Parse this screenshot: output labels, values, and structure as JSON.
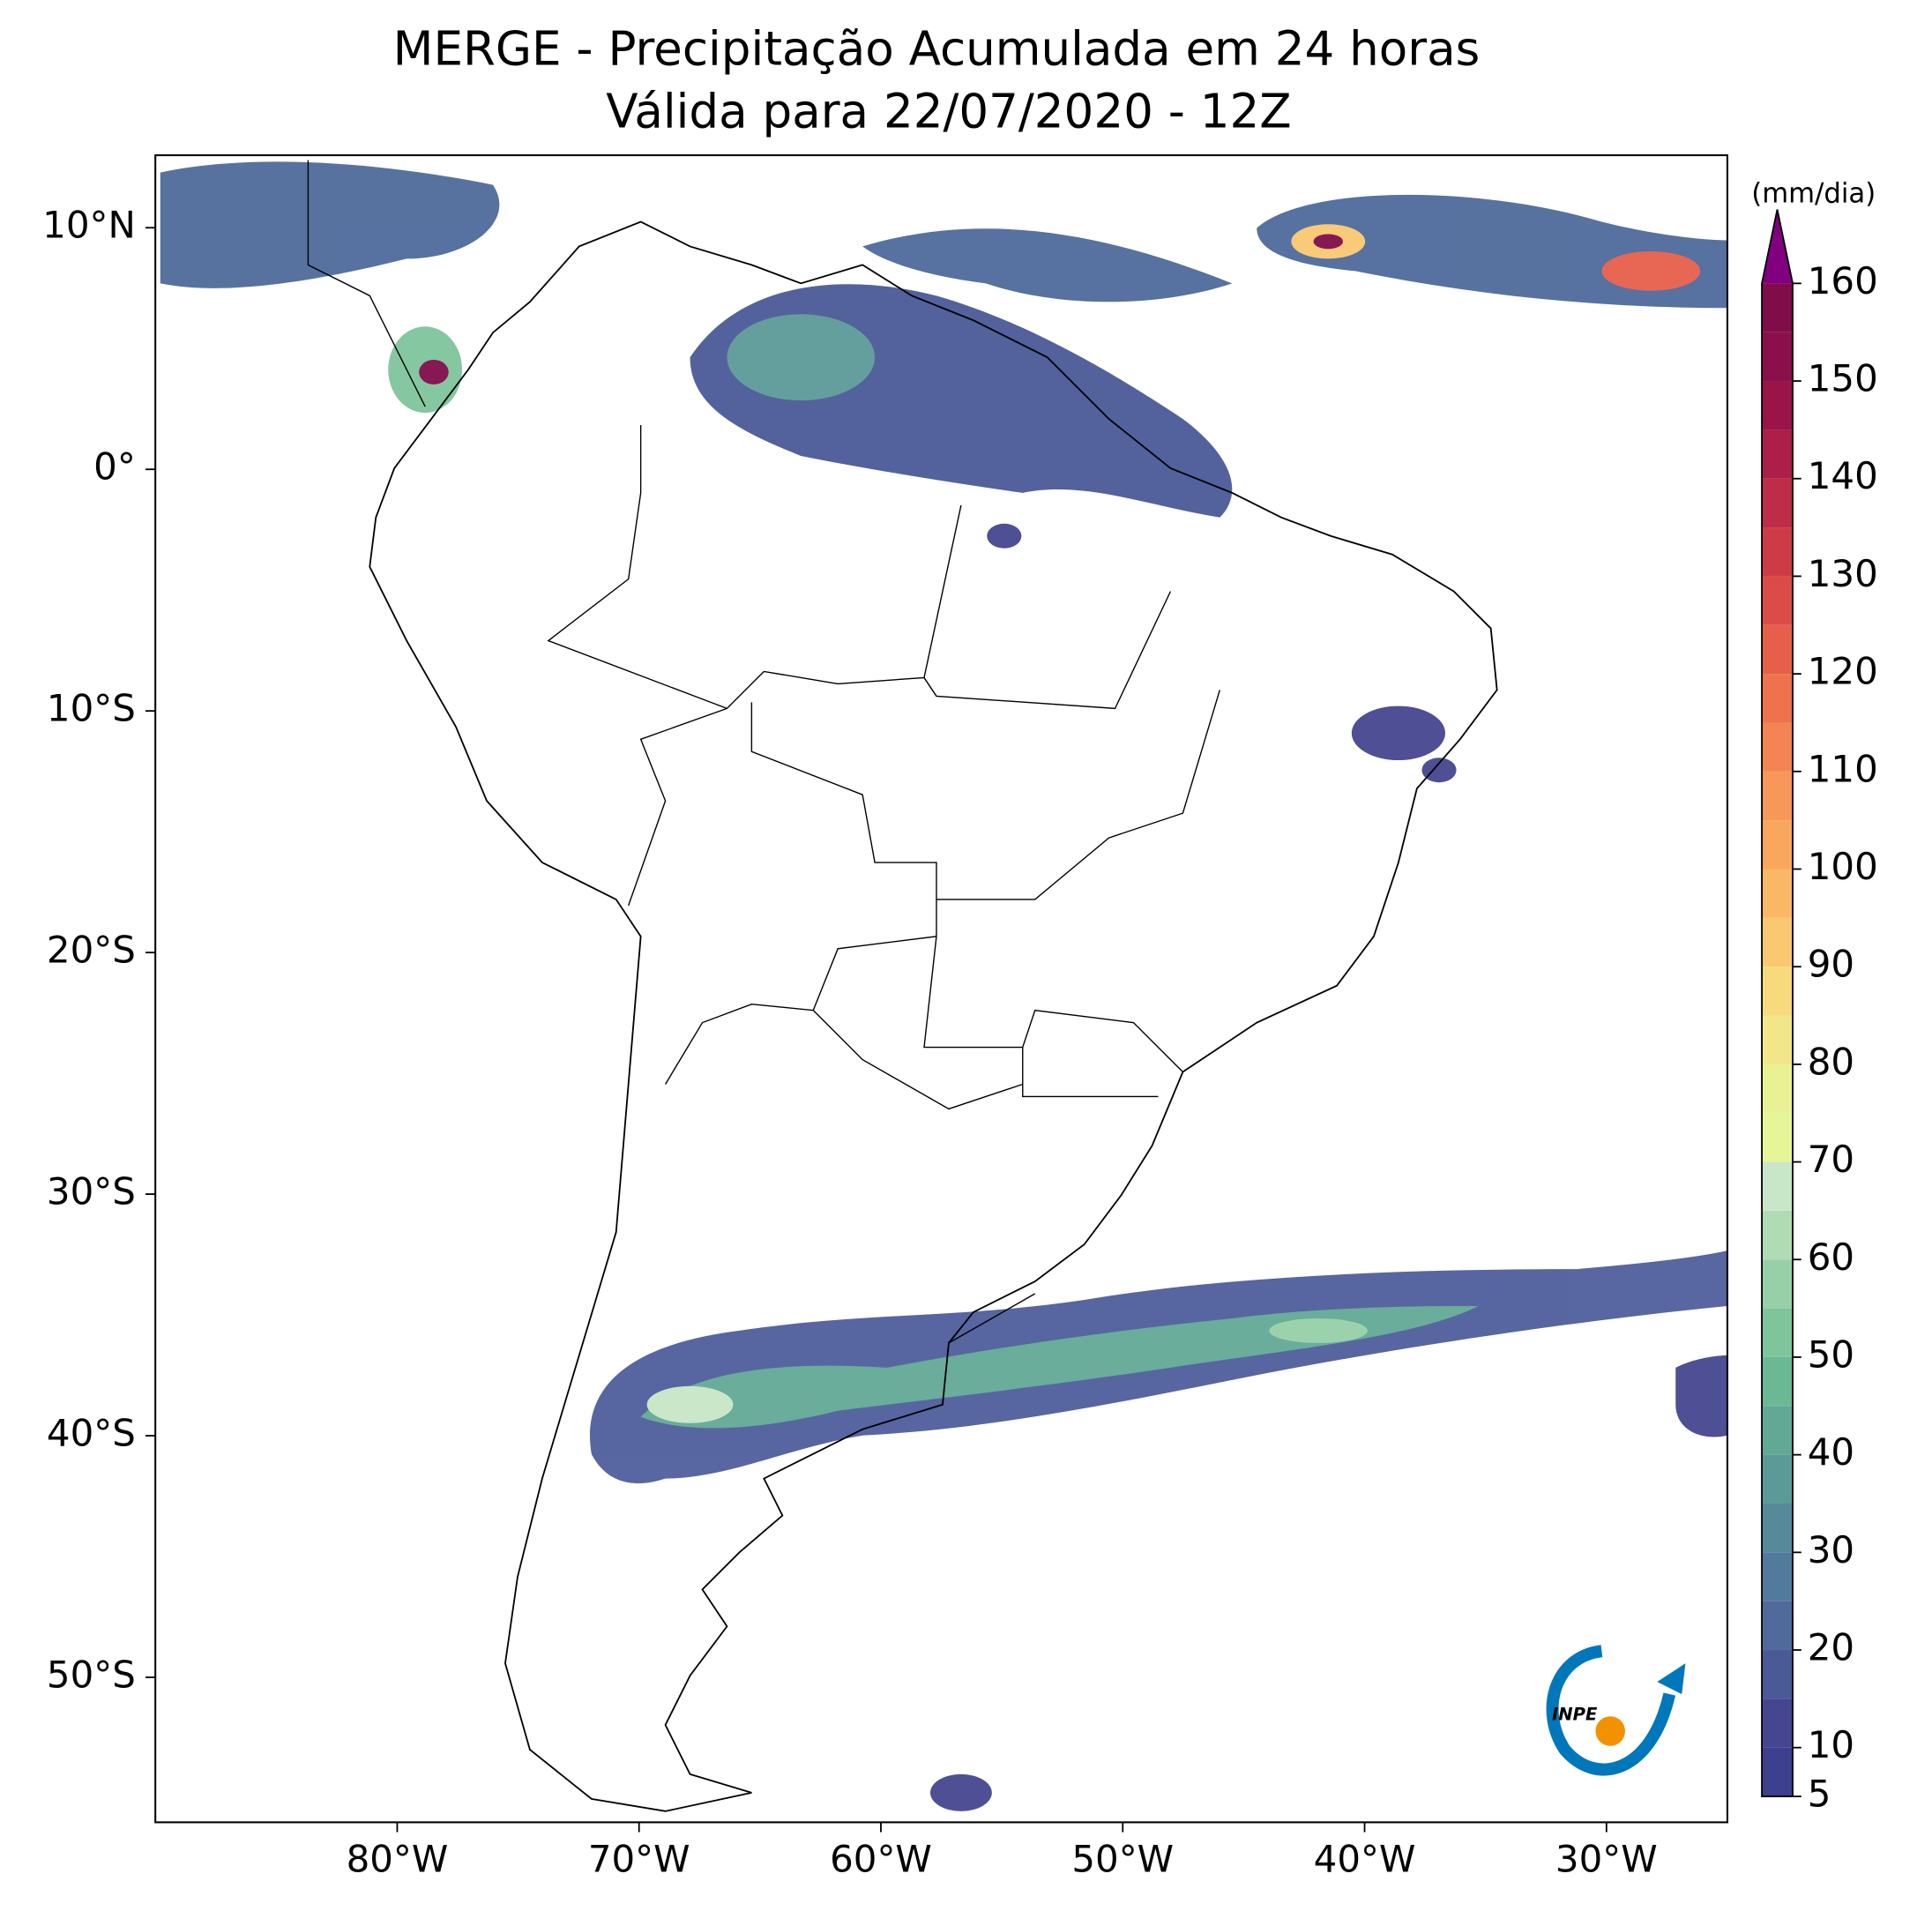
{
  "map": {
    "title": "MERGE - Precipitação Acumulada em 24 horas",
    "subtitle": "Válida para 22/07/2020 - 12Z",
    "xlim": [
      -90,
      -25
    ],
    "ylim": [
      -56,
      13
    ],
    "xticks": [
      {
        "value": -80,
        "label": "80°W"
      },
      {
        "value": -70,
        "label": "70°W"
      },
      {
        "value": -60,
        "label": "60°W"
      },
      {
        "value": -50,
        "label": "50°W"
      },
      {
        "value": -40,
        "label": "40°W"
      },
      {
        "value": -30,
        "label": "30°W"
      }
    ],
    "yticks": [
      {
        "value": 10,
        "label": "10°N"
      },
      {
        "value": 0,
        "label": "0°"
      },
      {
        "value": -10,
        "label": "10°S"
      },
      {
        "value": -20,
        "label": "20°S"
      },
      {
        "value": -30,
        "label": "30°S"
      },
      {
        "value": -40,
        "label": "40°S"
      },
      {
        "value": -50,
        "label": "50°S"
      }
    ],
    "colorbar": {
      "unit": "(mm/dia)",
      "lim": [
        5,
        160
      ],
      "ticks": [
        5,
        10,
        20,
        30,
        40,
        50,
        60,
        70,
        80,
        90,
        100,
        110,
        120,
        130,
        140,
        150,
        160
      ],
      "bounds": [
        5,
        10,
        15,
        20,
        25,
        30,
        35,
        40,
        45,
        50,
        55,
        60,
        65,
        70,
        75,
        80,
        85,
        90,
        95,
        100,
        105,
        110,
        115,
        120,
        125,
        130,
        135,
        140,
        145,
        150,
        155,
        160
      ],
      "colors": [
        "#3d3f8f",
        "#45468f",
        "#4a5a97",
        "#4f6a9b",
        "#527a9c",
        "#568a9b",
        "#5c9a98",
        "#62a995",
        "#6bb894",
        "#7fc59b",
        "#97d0a7",
        "#b0dcb4",
        "#c8e6c8",
        "#e6f598",
        "#eaf094",
        "#f1e78a",
        "#f6da7b",
        "#f9c870",
        "#fab766",
        "#f9a75d",
        "#f8975a",
        "#f48454",
        "#ef724f",
        "#e65f4b",
        "#db4c48",
        "#cd3c46",
        "#bd2d47",
        "#ab1f48",
        "#981449",
        "#8a0f4a",
        "#800c4a"
      ],
      "over_color": "#800080"
    },
    "logo": "INPE"
  }
}
